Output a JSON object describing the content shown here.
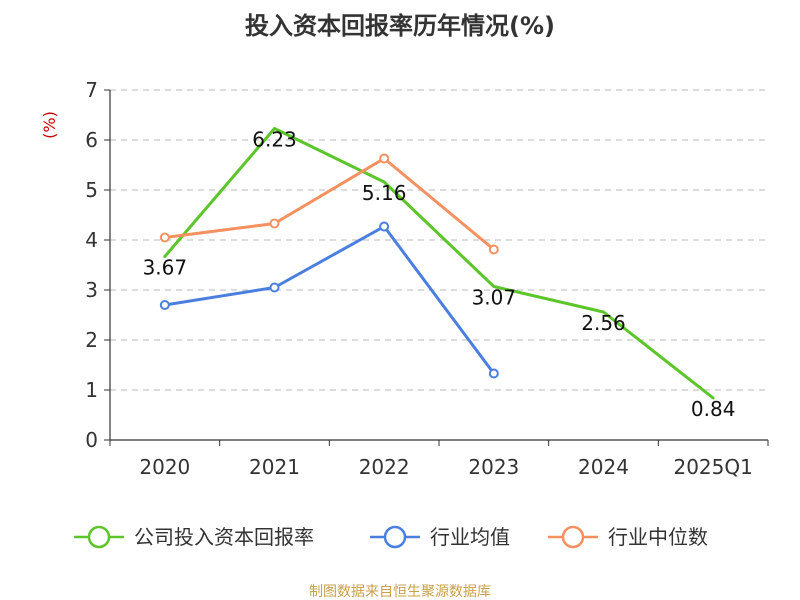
{
  "chart_data": {
    "type": "line",
    "title": "投入资本回报率历年情况(%)",
    "ylabel": "(%)",
    "xlabel": "",
    "categories": [
      "2020",
      "2021",
      "2022",
      "2023",
      "2024",
      "2025Q1"
    ],
    "ylim": [
      0,
      7
    ],
    "yticks": [
      0,
      1,
      2,
      3,
      4,
      5,
      6,
      7
    ],
    "grid": true,
    "legend_position": "bottom",
    "series": [
      {
        "name": "公司投入资本回报率",
        "color": "#5cc52a",
        "values": [
          3.67,
          6.23,
          5.16,
          3.07,
          2.56,
          0.84
        ],
        "labels": [
          "3.67",
          "6.23",
          "5.16",
          "3.07",
          "2.56",
          "0.84"
        ],
        "show_markers": false
      },
      {
        "name": "行业均值",
        "color": "#4a7fe0",
        "values": [
          2.7,
          3.05,
          4.27,
          1.33,
          null,
          null
        ],
        "show_markers": true
      },
      {
        "name": "行业中位数",
        "color": "#f5905f",
        "values": [
          4.05,
          4.33,
          5.63,
          3.81,
          null,
          null
        ],
        "show_markers": true
      }
    ]
  },
  "source": "制图数据来自恒生聚源数据库"
}
